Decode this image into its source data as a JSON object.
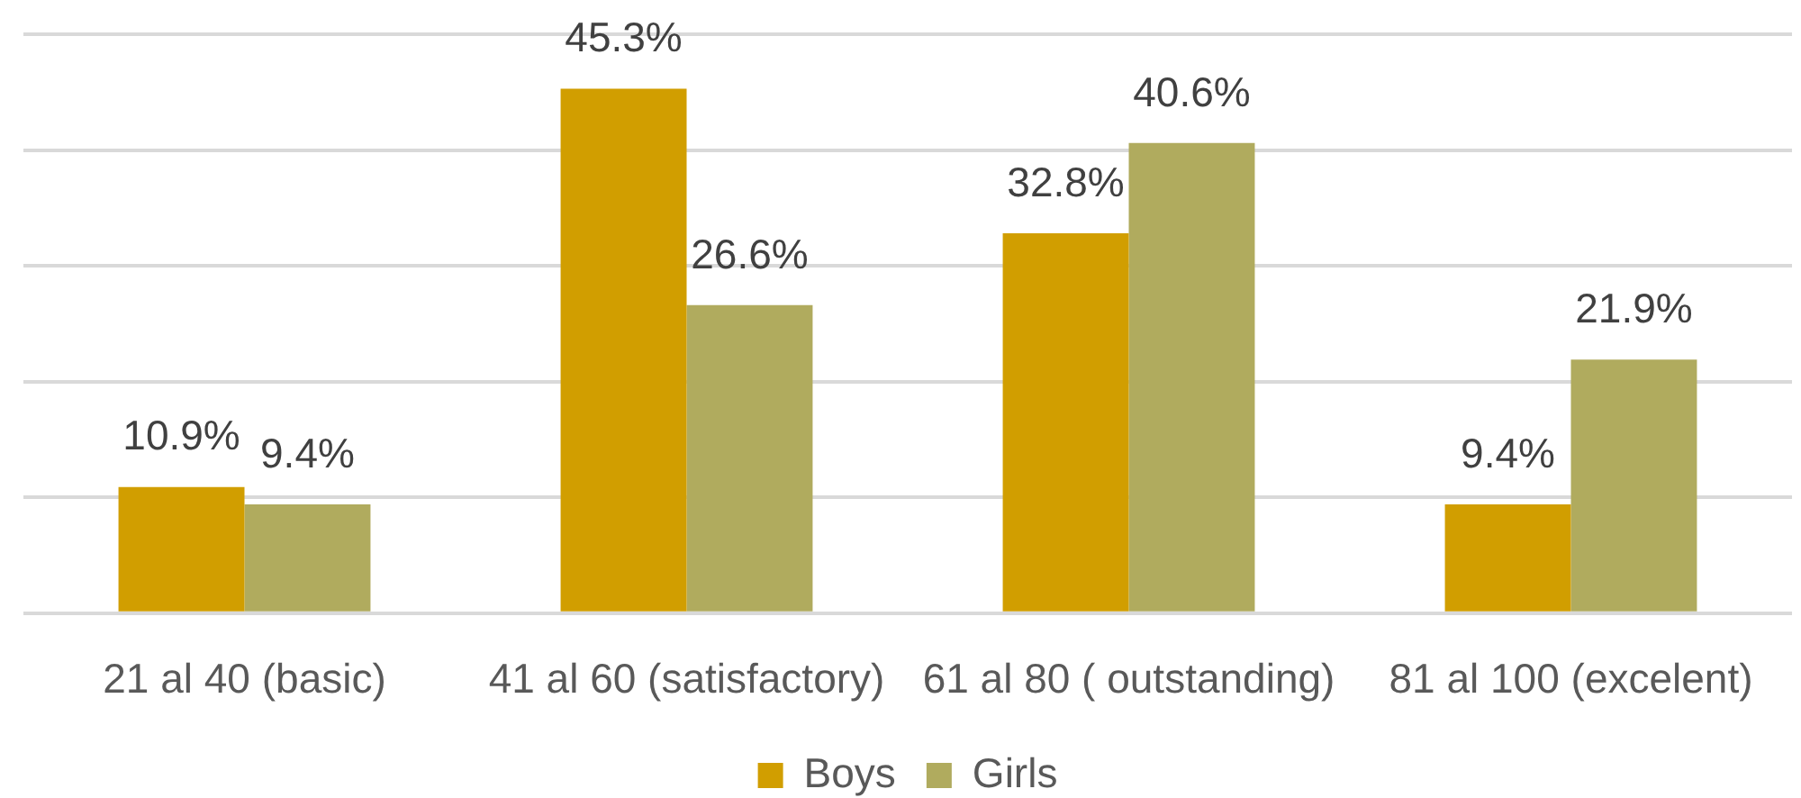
{
  "chart_data": {
    "type": "bar",
    "categories": [
      "21 al 40 (basic)",
      "41 al 60 (satisfactory)",
      "61 al 80 ( outstanding)",
      "81 al 100 (excelent)"
    ],
    "series": [
      {
        "name": "Boys",
        "color": "#d19e00",
        "values": [
          10.9,
          45.3,
          32.8,
          9.4
        ],
        "value_labels": [
          "10.9%",
          "45.3%",
          "32.8%",
          "9.4%"
        ]
      },
      {
        "name": "Girls",
        "color": "#b0ab5e",
        "values": [
          9.4,
          26.6,
          40.6,
          21.9
        ],
        "value_labels": [
          "9.4%",
          "26.6%",
          "40.6%",
          "21.9%"
        ]
      }
    ],
    "ylim": [
      0,
      50
    ],
    "yticks": [
      {
        "value": 0,
        "label": null
      },
      {
        "value": 10,
        "label": null
      },
      {
        "value": 20,
        "label": null
      },
      {
        "value": 30,
        "label": null
      },
      {
        "value": 40,
        "label": null
      },
      {
        "value": 50,
        "label": null
      }
    ],
    "grid": "y",
    "legend": "bottom",
    "tick_labels": "x"
  }
}
